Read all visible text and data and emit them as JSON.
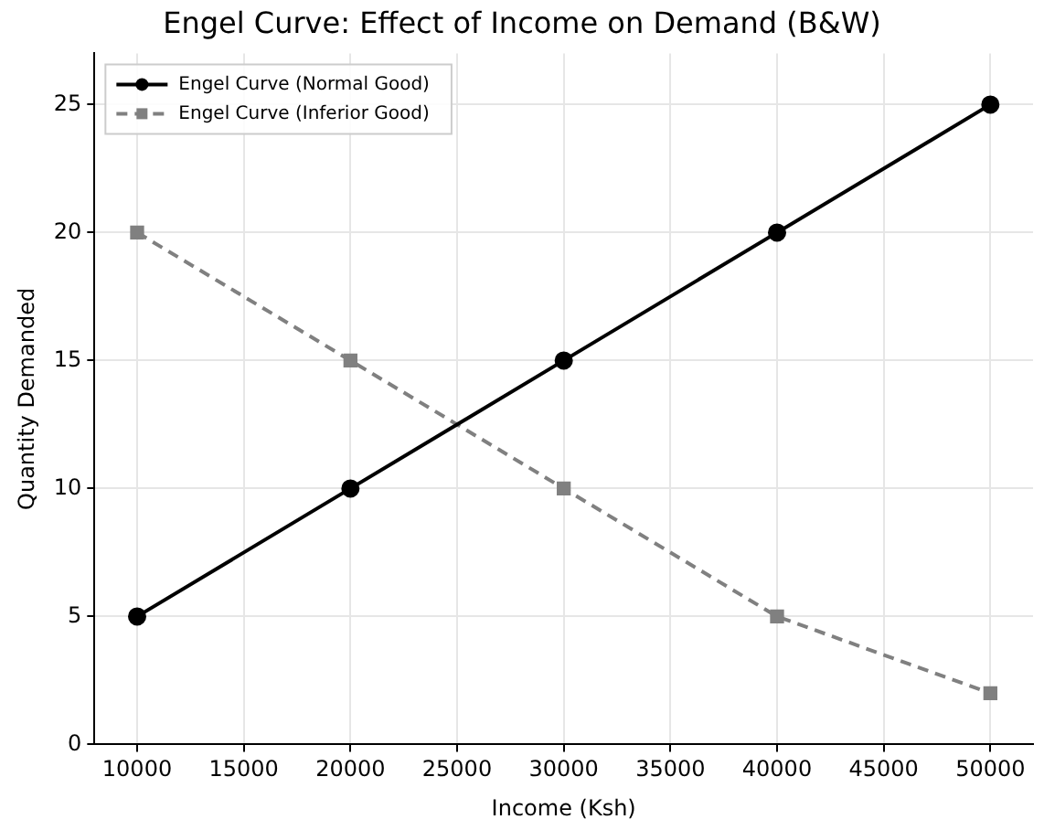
{
  "chart_data": {
    "type": "line",
    "title": "Engel Curve: Effect of Income on Demand (B&W)",
    "xlabel": "Income (Ksh)",
    "ylabel": "Quantity Demanded",
    "x": [
      10000,
      20000,
      30000,
      40000,
      50000
    ],
    "series": [
      {
        "name": "Engel Curve (Normal Good)",
        "color": "#000000",
        "values": [
          5,
          10,
          15,
          20,
          25
        ],
        "marker": "circle",
        "line_style": "solid"
      },
      {
        "name": "Engel Curve (Inferior Good)",
        "color": "#808080",
        "values": [
          20,
          15,
          10,
          5,
          2
        ],
        "marker": "square",
        "line_style": "dashed"
      }
    ],
    "xlim": [
      8000,
      52000
    ],
    "xticks": [
      10000,
      15000,
      20000,
      25000,
      30000,
      35000,
      40000,
      45000,
      50000
    ],
    "ylim": [
      0,
      27
    ],
    "yticks": [
      0,
      5,
      10,
      15,
      20,
      25
    ],
    "grid": true,
    "legend": "top left"
  }
}
